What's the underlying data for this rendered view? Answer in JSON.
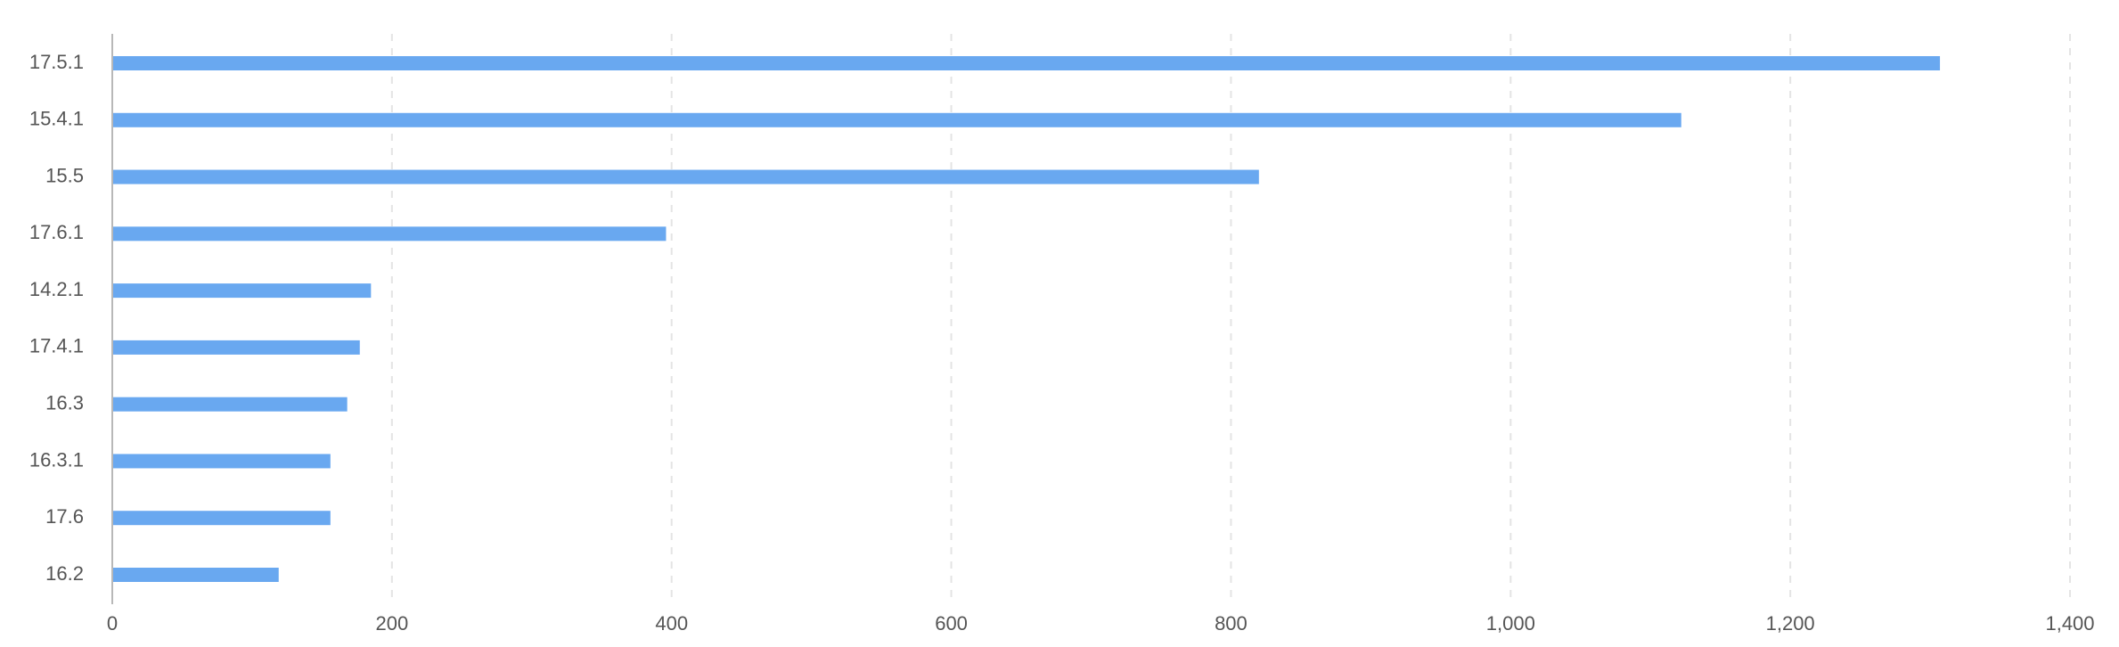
{
  "chart_data": {
    "type": "bar",
    "orientation": "horizontal",
    "title": "",
    "xlabel": "",
    "ylabel": "",
    "categories": [
      "17.5.1",
      "15.4.1",
      "15.5",
      "17.6.1",
      "14.2.1",
      "17.4.1",
      "16.3",
      "16.3.1",
      "17.6",
      "16.2"
    ],
    "values": [
      1307,
      1122,
      820,
      396,
      185,
      177,
      168,
      156,
      156,
      119
    ],
    "xlim": [
      0,
      1400
    ],
    "xticks": [
      0,
      200,
      400,
      600,
      800,
      1000,
      1200,
      1400
    ],
    "xtick_labels": [
      "0",
      "200",
      "400",
      "600",
      "800",
      "1,000",
      "1,200",
      "1,400"
    ],
    "grid": true,
    "legend": "none",
    "colors": {
      "bar": "#69a8f0"
    }
  }
}
